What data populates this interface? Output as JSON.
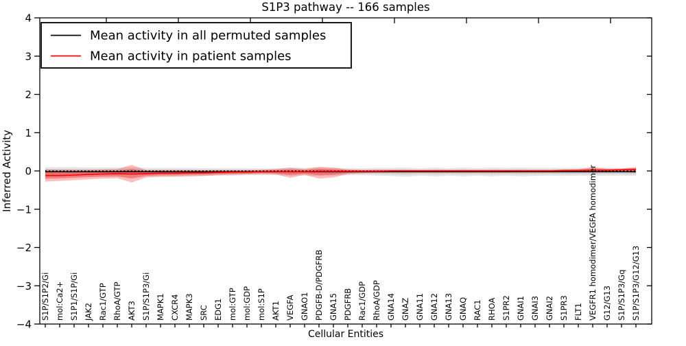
{
  "chart_data": {
    "type": "line",
    "title": "S1P3 pathway -- 166 samples",
    "xlabel": "Cellular Entities",
    "ylabel": "Inferred Activity",
    "ylim": [
      -4,
      4
    ],
    "yticks": [
      -4,
      -3,
      -2,
      -1,
      0,
      1,
      2,
      3,
      4
    ],
    "grid": false,
    "legend_position": "upper left",
    "categories": [
      "S1P/S1P2/Gi",
      "mol:Ca2+",
      "S1P1/S1P/Gi",
      "JAK2",
      "Rac1/GTP",
      "RhoA/GTP",
      "AKT3",
      "S1P/S1P3/Gi",
      "MAPK1",
      "CXCR4",
      "MAPK3",
      "SRC",
      "EDG1",
      "mol:GTP",
      "mol:GDP",
      "mol:S1P",
      "AKT1",
      "VEGFA",
      "GNAO1",
      "PDGFB-D/PDGFRB",
      "GNA15",
      "PDGFRB",
      "Rac1/GDP",
      "RhoA/GDP",
      "GNA14",
      "GNAZ",
      "GNA11",
      "GNA12",
      "GNA13",
      "GNAQ",
      "RAC1",
      "RHOA",
      "S1PR2",
      "GNAI1",
      "GNAI3",
      "GNAI2",
      "S1PR3",
      "FLT1",
      "VEGFR1 homodimer/VEGFA homodimer",
      "G12/G13",
      "S1P/S1P3/Gq",
      "S1P/S1P3/G12/G13"
    ],
    "series": [
      {
        "name": "Mean activity in all permuted samples",
        "color": "#000000",
        "line_style": "solid",
        "band_opacity": 0.1,
        "values": [
          -0.02,
          -0.02,
          -0.02,
          -0.02,
          -0.02,
          -0.02,
          -0.02,
          -0.02,
          -0.02,
          -0.02,
          -0.02,
          -0.02,
          -0.02,
          -0.02,
          -0.02,
          -0.02,
          -0.02,
          -0.02,
          -0.02,
          -0.02,
          -0.02,
          -0.02,
          -0.02,
          -0.02,
          -0.02,
          -0.02,
          -0.02,
          -0.02,
          -0.02,
          -0.02,
          -0.02,
          -0.02,
          -0.02,
          -0.02,
          -0.02,
          -0.02,
          -0.02,
          -0.02,
          -0.02,
          -0.02,
          -0.02,
          -0.02
        ],
        "band_upper": [
          0.1,
          0.1,
          0.1,
          0.09,
          0.09,
          0.09,
          0.1,
          0.08,
          0.08,
          0.08,
          0.08,
          0.07,
          0.07,
          0.07,
          0.07,
          0.07,
          0.07,
          0.08,
          0.08,
          0.09,
          0.08,
          0.07,
          0.07,
          0.08,
          0.08,
          0.09,
          0.07,
          0.09,
          0.07,
          0.09,
          0.07,
          0.09,
          0.08,
          0.09,
          0.08,
          0.08,
          0.08,
          0.08,
          0.08,
          0.08,
          0.08,
          0.08
        ],
        "band_lower": [
          -0.18,
          -0.18,
          -0.17,
          -0.16,
          -0.16,
          -0.15,
          -0.18,
          -0.15,
          -0.14,
          -0.14,
          -0.14,
          -0.13,
          -0.12,
          -0.12,
          -0.11,
          -0.11,
          -0.11,
          -0.12,
          -0.12,
          -0.13,
          -0.12,
          -0.11,
          -0.11,
          -0.12,
          -0.13,
          -0.15,
          -0.12,
          -0.14,
          -0.12,
          -0.14,
          -0.12,
          -0.14,
          -0.12,
          -0.14,
          -0.13,
          -0.12,
          -0.13,
          -0.12,
          -0.13,
          -0.12,
          -0.12,
          -0.13
        ]
      },
      {
        "name": "Mean activity in patient samples",
        "color": "#ff0000",
        "line_style": "solid",
        "band_opacity": 0.26,
        "values": [
          -0.12,
          -0.12,
          -0.11,
          -0.09,
          -0.08,
          -0.07,
          -0.08,
          -0.07,
          -0.06,
          -0.06,
          -0.05,
          -0.05,
          -0.04,
          -0.03,
          -0.03,
          -0.02,
          -0.02,
          -0.02,
          -0.02,
          -0.01,
          -0.01,
          -0.01,
          -0.01,
          -0.01,
          0,
          0,
          0,
          0,
          0,
          0,
          0,
          0,
          0,
          0,
          0,
          0,
          0.01,
          0.01,
          0.02,
          0.02,
          0.03,
          0.04
        ],
        "band_upper": [
          0.04,
          0.03,
          0.03,
          0.03,
          0.04,
          0.05,
          0.16,
          0.02,
          0.02,
          0.02,
          0.02,
          0.02,
          0.02,
          0.02,
          0.02,
          0.03,
          0.05,
          0.09,
          0.05,
          0.11,
          0.09,
          0.04,
          0.03,
          0.03,
          0.03,
          0.03,
          0.03,
          0.03,
          0.03,
          0.03,
          0.03,
          0.03,
          0.03,
          0.03,
          0.03,
          0.03,
          0.04,
          0.05,
          0.1,
          0.06,
          0.06,
          0.1
        ],
        "band_lower": [
          -0.28,
          -0.26,
          -0.24,
          -0.22,
          -0.2,
          -0.19,
          -0.3,
          -0.17,
          -0.15,
          -0.15,
          -0.14,
          -0.13,
          -0.11,
          -0.1,
          -0.09,
          -0.08,
          -0.09,
          -0.18,
          -0.1,
          -0.2,
          -0.17,
          -0.08,
          -0.06,
          -0.05,
          -0.04,
          -0.04,
          -0.04,
          -0.04,
          -0.04,
          -0.04,
          -0.04,
          -0.04,
          -0.04,
          -0.03,
          -0.03,
          -0.03,
          -0.03,
          -0.03,
          -0.04,
          -0.03,
          -0.02,
          -0.05
        ]
      },
      {
        "name": "zero reference",
        "color": "#000000",
        "line_style": "dotted",
        "values": [
          0,
          0,
          0,
          0,
          0,
          0,
          0,
          0,
          0,
          0,
          0,
          0,
          0,
          0,
          0,
          0,
          0,
          0,
          0,
          0,
          0,
          0,
          0,
          0,
          0,
          0,
          0,
          0,
          0,
          0,
          0,
          0,
          0,
          0,
          0,
          0,
          0,
          0,
          0,
          0,
          0,
          0
        ]
      }
    ]
  },
  "legend": {
    "items": [
      {
        "label": "Mean activity in all permuted samples",
        "color": "#000000"
      },
      {
        "label": "Mean activity in patient samples",
        "color": "#ff0000"
      }
    ]
  }
}
